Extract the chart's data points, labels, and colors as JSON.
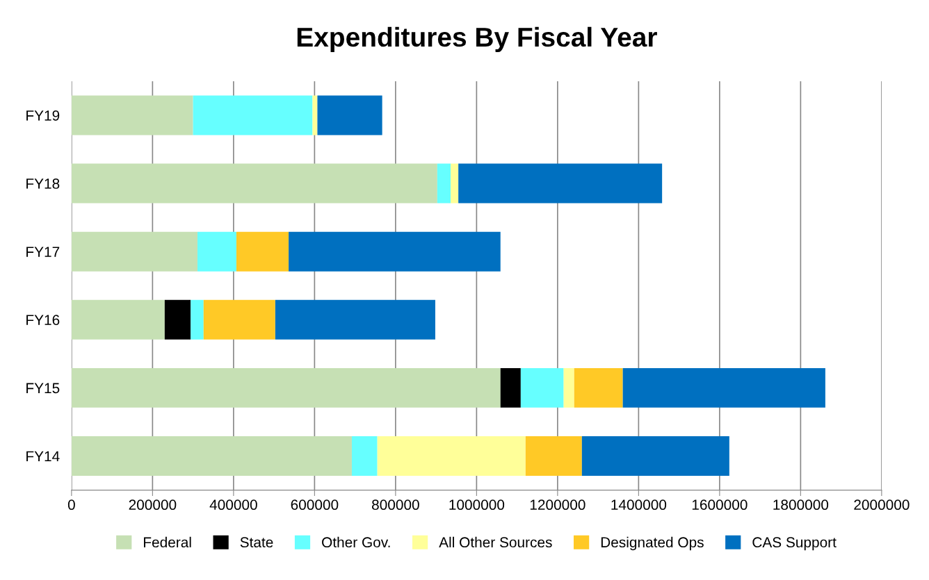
{
  "chart_data": {
    "type": "bar",
    "title": "Expenditures By Fiscal Year",
    "orientation": "horizontal",
    "stacked": true,
    "categories": [
      "FY19",
      "FY18",
      "FY17",
      "FY16",
      "FY15",
      "FY14"
    ],
    "series": [
      {
        "name": "Federal",
        "color": "#c6e0b4",
        "values": [
          300000,
          903000,
          311000,
          230000,
          1059000,
          692000
        ]
      },
      {
        "name": "State",
        "color": "#000000",
        "values": [
          0,
          0,
          0,
          64000,
          50000,
          0
        ]
      },
      {
        "name": "Other Gov.",
        "color": "#66ffff",
        "values": [
          295000,
          33000,
          96000,
          32000,
          106000,
          63000
        ]
      },
      {
        "name": "All Other Sources",
        "color": "#ffff99",
        "values": [
          12000,
          19000,
          0,
          0,
          26000,
          366000
        ]
      },
      {
        "name": "Designated Ops",
        "color": "#ffc926",
        "values": [
          0,
          0,
          129000,
          177000,
          120000,
          139000
        ]
      },
      {
        "name": "CAS Support",
        "color": "#0070c0",
        "values": [
          160000,
          503000,
          523000,
          395000,
          500000,
          364000
        ]
      }
    ],
    "xlim": [
      0,
      2000000
    ],
    "xticks": [
      0,
      200000,
      400000,
      600000,
      800000,
      1000000,
      1200000,
      1400000,
      1600000,
      1800000,
      2000000
    ],
    "grid": "x",
    "legend": "bottom"
  }
}
